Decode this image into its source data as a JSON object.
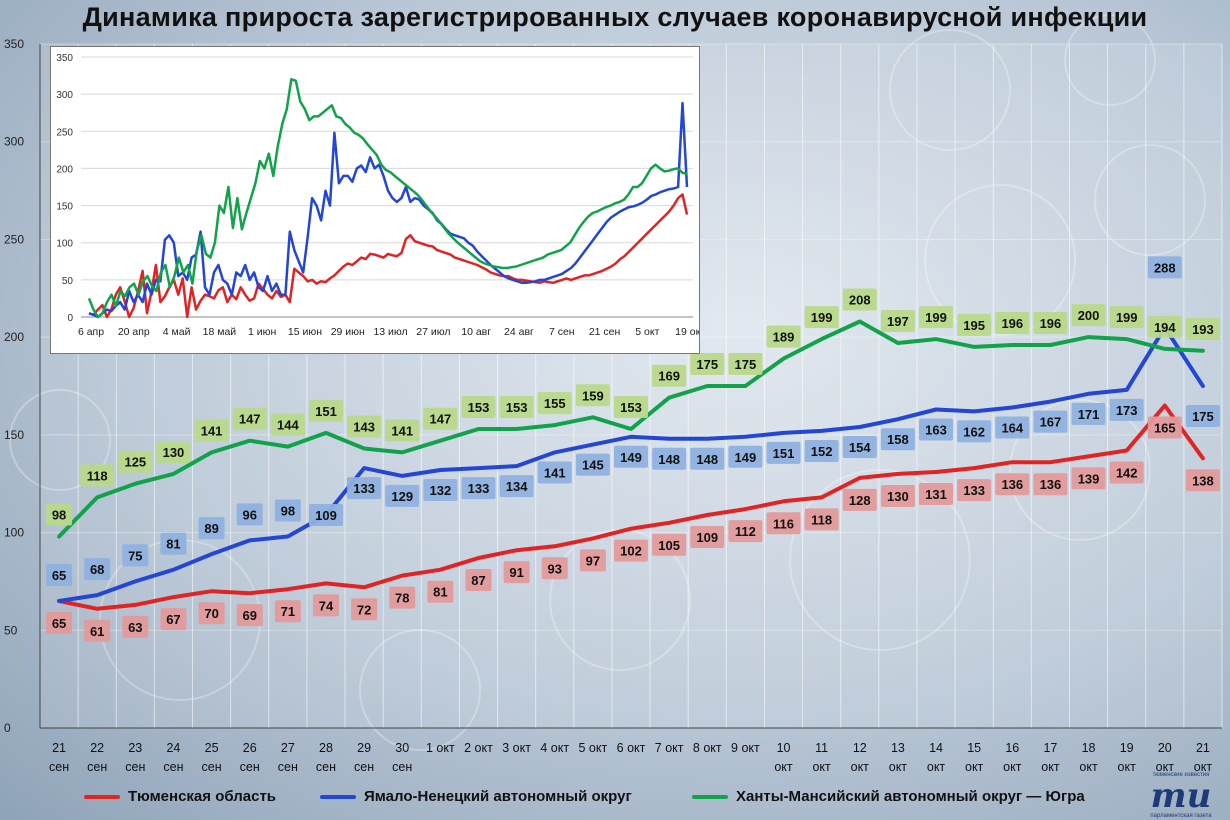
{
  "title": "Динамика прироста зарегистрированных случаев коронавирусной инфекции",
  "colors": {
    "red": "#e02424",
    "blue": "#2346d6",
    "green": "#11a34a"
  },
  "chart_data": [
    {
      "type": "line",
      "title": "Динамика прироста зарегистрированных случаев коронавирусной инфекции",
      "ylim": [
        0,
        350
      ],
      "yticks": [
        0,
        50,
        100,
        150,
        200,
        250,
        300,
        350
      ],
      "grid": true,
      "legend_position": "bottom",
      "categories": [
        [
          "21",
          "сен"
        ],
        [
          "22",
          "сен"
        ],
        [
          "23",
          "сен"
        ],
        [
          "24",
          "сен"
        ],
        [
          "25",
          "сен"
        ],
        [
          "26",
          "сен"
        ],
        [
          "27",
          "сен"
        ],
        [
          "28",
          "сен"
        ],
        [
          "29",
          "сен"
        ],
        [
          "30",
          "сен"
        ],
        [
          "1 окт"
        ],
        [
          "2 окт"
        ],
        [
          "3 окт"
        ],
        [
          "4 окт"
        ],
        [
          "5 окт"
        ],
        [
          "6 окт"
        ],
        [
          "7 окт"
        ],
        [
          "8 окт"
        ],
        [
          "9 окт"
        ],
        [
          "10",
          "окт"
        ],
        [
          "11",
          "окт"
        ],
        [
          "12",
          "окт"
        ],
        [
          "13",
          "окт"
        ],
        [
          "14",
          "окт"
        ],
        [
          "15",
          "окт"
        ],
        [
          "16",
          "окт"
        ],
        [
          "17",
          "окт"
        ],
        [
          "18",
          "окт"
        ],
        [
          "19",
          "окт"
        ],
        [
          "20",
          "окт"
        ],
        [
          "21",
          "окт"
        ]
      ],
      "series": [
        {
          "name": "Тюменская область",
          "color": "#e02424",
          "label_bg": "#e39a9a",
          "label_side": "below",
          "values": [
            65,
            61,
            63,
            67,
            70,
            69,
            71,
            74,
            72,
            78,
            81,
            87,
            91,
            93,
            97,
            102,
            105,
            109,
            112,
            116,
            118,
            128,
            130,
            131,
            133,
            136,
            136,
            139,
            142,
            165,
            138
          ]
        },
        {
          "name": "Ямало-Ненецкий автономный округ",
          "color": "#2346d6",
          "label_bg": "#8fb1df",
          "label_side": "mixed",
          "values": [
            65,
            68,
            75,
            81,
            89,
            96,
            98,
            109,
            133,
            129,
            132,
            133,
            134,
            141,
            145,
            149,
            148,
            148,
            149,
            151,
            152,
            154,
            158,
            163,
            162,
            164,
            167,
            171,
            173,
            288,
            175
          ]
        },
        {
          "name": "Ханты-Мансийский автономный округ — Югра",
          "color": "#11a34a",
          "label_bg": "#b8d98a",
          "label_side": "above",
          "values": [
            98,
            118,
            125,
            130,
            141,
            147,
            144,
            151,
            143,
            141,
            147,
            153,
            153,
            155,
            159,
            153,
            169,
            175,
            175,
            189,
            199,
            208,
            197,
            199,
            195,
            196,
            196,
            200,
            199,
            194,
            193
          ]
        }
      ]
    },
    {
      "type": "line",
      "ylim": [
        0,
        350
      ],
      "yticks": [
        0,
        50,
        100,
        150,
        200,
        250,
        300,
        350
      ],
      "grid": true,
      "x_ticks": [
        "6 апр",
        "20 апр",
        "4 май",
        "18 май",
        "1 июн",
        "15 июн",
        "29 июн",
        "13 июл",
        "27 июл",
        "10 авг",
        "24 авг",
        "7 сен",
        "21 сен",
        "5 окт",
        "19 окт"
      ],
      "series": [
        {
          "name": "Тюменская область",
          "color": "#e02424",
          "values": [
            5,
            3,
            10,
            16,
            0,
            10,
            30,
            40,
            21,
            0,
            12,
            35,
            62,
            5,
            34,
            70,
            20,
            28,
            40,
            50,
            30,
            52,
            0,
            40,
            10,
            22,
            30,
            28,
            25,
            36,
            40,
            20,
            30,
            24,
            40,
            30,
            22,
            25,
            45,
            38,
            30,
            25,
            35,
            27,
            30,
            20,
            65,
            60,
            55,
            48,
            50,
            45,
            48,
            47,
            52,
            56,
            62,
            68,
            72,
            70,
            75,
            80,
            78,
            85,
            84,
            82,
            80,
            85,
            83,
            82,
            86,
            105,
            110,
            102,
            100,
            98,
            96,
            95,
            90,
            88,
            86,
            84,
            80,
            78,
            76,
            74,
            72,
            70,
            67,
            64,
            60,
            58,
            56,
            55,
            55,
            52,
            50,
            50,
            49,
            48,
            47,
            46,
            48,
            47,
            46,
            48,
            50,
            52,
            50,
            52,
            54,
            56,
            56,
            58,
            60,
            62,
            65,
            68,
            72,
            78,
            82,
            88,
            94,
            100,
            106,
            112,
            118,
            124,
            130,
            136,
            142,
            150,
            160,
            165,
            138
          ]
        },
        {
          "name": "Ямало-Ненецкий автономный округ",
          "color": "#2346d6",
          "values": [
            5,
            3,
            0,
            5,
            10,
            8,
            15,
            20,
            10,
            35,
            20,
            30,
            20,
            45,
            30,
            50,
            48,
            104,
            110,
            100,
            55,
            60,
            50,
            80,
            84,
            115,
            40,
            30,
            60,
            70,
            50,
            45,
            30,
            60,
            55,
            70,
            50,
            60,
            40,
            35,
            55,
            35,
            45,
            30,
            30,
            115,
            90,
            75,
            60,
            108,
            160,
            150,
            130,
            170,
            150,
            248,
            180,
            190,
            190,
            182,
            200,
            204,
            195,
            215,
            200,
            205,
            190,
            170,
            160,
            155,
            160,
            175,
            155,
            160,
            158,
            150,
            145,
            140,
            130,
            125,
            118,
            112,
            110,
            108,
            106,
            100,
            96,
            88,
            82,
            76,
            70,
            65,
            60,
            55,
            52,
            50,
            48,
            46,
            46,
            47,
            48,
            50,
            50,
            52,
            54,
            56,
            58,
            62,
            66,
            72,
            80,
            88,
            96,
            104,
            112,
            120,
            128,
            134,
            138,
            142,
            145,
            148,
            149,
            151,
            154,
            158,
            163,
            165,
            168,
            170,
            172,
            173,
            175,
            288,
            175
          ]
        },
        {
          "name": "Ханты-Мансийский автономный округ — Югра",
          "color": "#11a34a",
          "values": [
            25,
            10,
            0,
            5,
            20,
            30,
            15,
            35,
            28,
            40,
            45,
            30,
            48,
            55,
            42,
            35,
            60,
            70,
            40,
            55,
            80,
            60,
            70,
            45,
            90,
            110,
            85,
            80,
            100,
            150,
            140,
            175,
            120,
            160,
            118,
            140,
            160,
            180,
            210,
            200,
            220,
            190,
            230,
            260,
            280,
            320,
            318,
            290,
            280,
            265,
            270,
            270,
            275,
            280,
            285,
            270,
            268,
            260,
            255,
            248,
            245,
            240,
            232,
            225,
            218,
            205,
            198,
            195,
            190,
            185,
            180,
            175,
            170,
            165,
            158,
            150,
            142,
            135,
            128,
            120,
            112,
            106,
            100,
            95,
            90,
            85,
            80,
            75,
            72,
            70,
            68,
            67,
            66,
            66,
            67,
            68,
            70,
            72,
            74,
            76,
            78,
            80,
            84,
            86,
            88,
            90,
            95,
            100,
            110,
            120,
            128,
            135,
            140,
            142,
            145,
            148,
            150,
            153,
            155,
            158,
            165,
            175,
            175,
            180,
            190,
            200,
            205,
            200,
            196,
            197,
            199,
            200,
            194,
            193
          ]
        }
      ]
    }
  ],
  "legend": [
    {
      "label": "Тюменская область",
      "color": "#e02424"
    },
    {
      "label": "Ямало-Ненецкий автономный округ",
      "color": "#2346d6"
    },
    {
      "label": "Ханты-Мансийский автономный округ — Югра",
      "color": "#11a34a"
    }
  ],
  "brand": {
    "mark": "mu",
    "line1": "тюменские известия",
    "line2": "парламентская газета"
  }
}
